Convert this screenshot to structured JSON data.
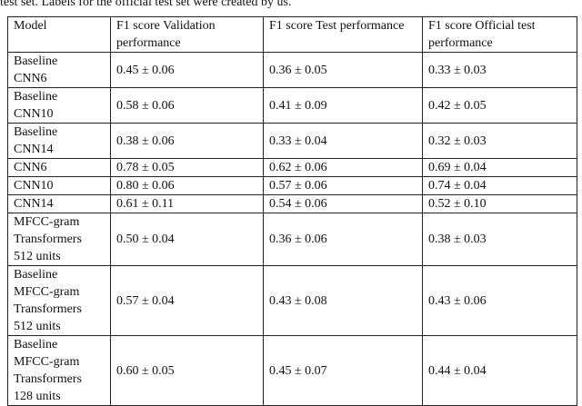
{
  "caption": "test set. Labels for the official test set were created by us.",
  "table": {
    "header": [
      "Model",
      "F1 score Validation performance",
      "F1 score Test performance",
      "F1 score Official test performance"
    ],
    "rows": [
      [
        "Baseline\nCNN6",
        "0.45 ± 0.06",
        "0.36 ± 0.05",
        "0.33 ± 0.03"
      ],
      [
        "Baseline\nCNN10",
        "0.58 ± 0.06",
        "0.41 ± 0.09",
        "0.42 ± 0.05"
      ],
      [
        "Baseline\nCNN14",
        "0.38 ± 0.06",
        "0.33 ± 0.04",
        "0.32 ± 0.03"
      ],
      [
        "CNN6",
        "0.78 ± 0.05",
        "0.62 ± 0.06",
        "0.69 ± 0.04"
      ],
      [
        "CNN10",
        "0.80 ± 0.06",
        "0.57 ± 0.06",
        "0.74 ± 0.04"
      ],
      [
        "CNN14",
        "0.61 ± 0.11",
        "0.54 ± 0.06",
        "0.52 ± 0.10"
      ],
      [
        "MFCC-gram\nTransformers\n512 units",
        "0.50 ± 0.04",
        "0.36 ± 0.06",
        "0.38 ± 0.03"
      ],
      [
        "Baseline\nMFCC-gram\nTransformers\n512 units",
        "0.57 ± 0.04",
        "0.43 ± 0.08",
        "0.43 ± 0.06"
      ],
      [
        "Baseline\nMFCC-gram\nTransformers\n128 units",
        "0.60 ± 0.05",
        "0.45 ± 0.07",
        "0.44 ± 0.04"
      ]
    ],
    "bold_cells": [
      [
        3,
        2
      ],
      [
        4,
        1
      ],
      [
        4,
        3
      ]
    ]
  }
}
